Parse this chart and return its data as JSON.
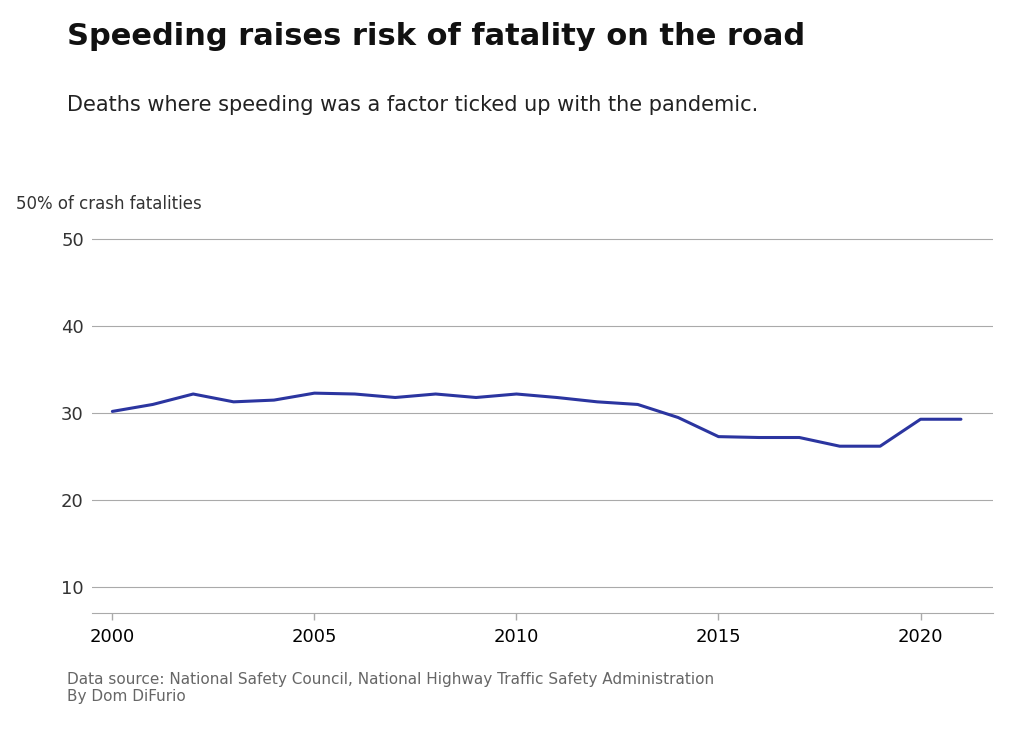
{
  "title": "Speeding raises risk of fatality on the road",
  "subtitle": "Deaths where speeding was a factor ticked up with the pandemic.",
  "ylabel": "50% of crash fatalities",
  "source_text": "Data source: National Safety Council, National Highway Traffic Safety Administration\nBy Dom DiFurio",
  "years": [
    2000,
    2001,
    2002,
    2003,
    2004,
    2005,
    2006,
    2007,
    2008,
    2009,
    2010,
    2011,
    2012,
    2013,
    2014,
    2015,
    2016,
    2017,
    2018,
    2019,
    2020,
    2021
  ],
  "values": [
    30.2,
    31.0,
    32.2,
    31.3,
    31.5,
    32.3,
    32.2,
    31.8,
    32.2,
    31.8,
    32.2,
    31.8,
    31.3,
    31.0,
    29.5,
    27.3,
    27.2,
    27.2,
    26.2,
    26.2,
    29.3,
    29.3
  ],
  "line_color": "#2b35a0",
  "line_width": 2.2,
  "yticks": [
    10,
    20,
    30,
    40,
    50
  ],
  "ylim": [
    7,
    54
  ],
  "xlim": [
    1999.5,
    2021.8
  ],
  "xticks": [
    2000,
    2005,
    2010,
    2015,
    2020
  ],
  "grid_color": "#aaaaaa",
  "background_color": "#ffffff",
  "title_fontsize": 22,
  "subtitle_fontsize": 15,
  "ylabel_fontsize": 12,
  "tick_fontsize": 13,
  "source_fontsize": 11
}
